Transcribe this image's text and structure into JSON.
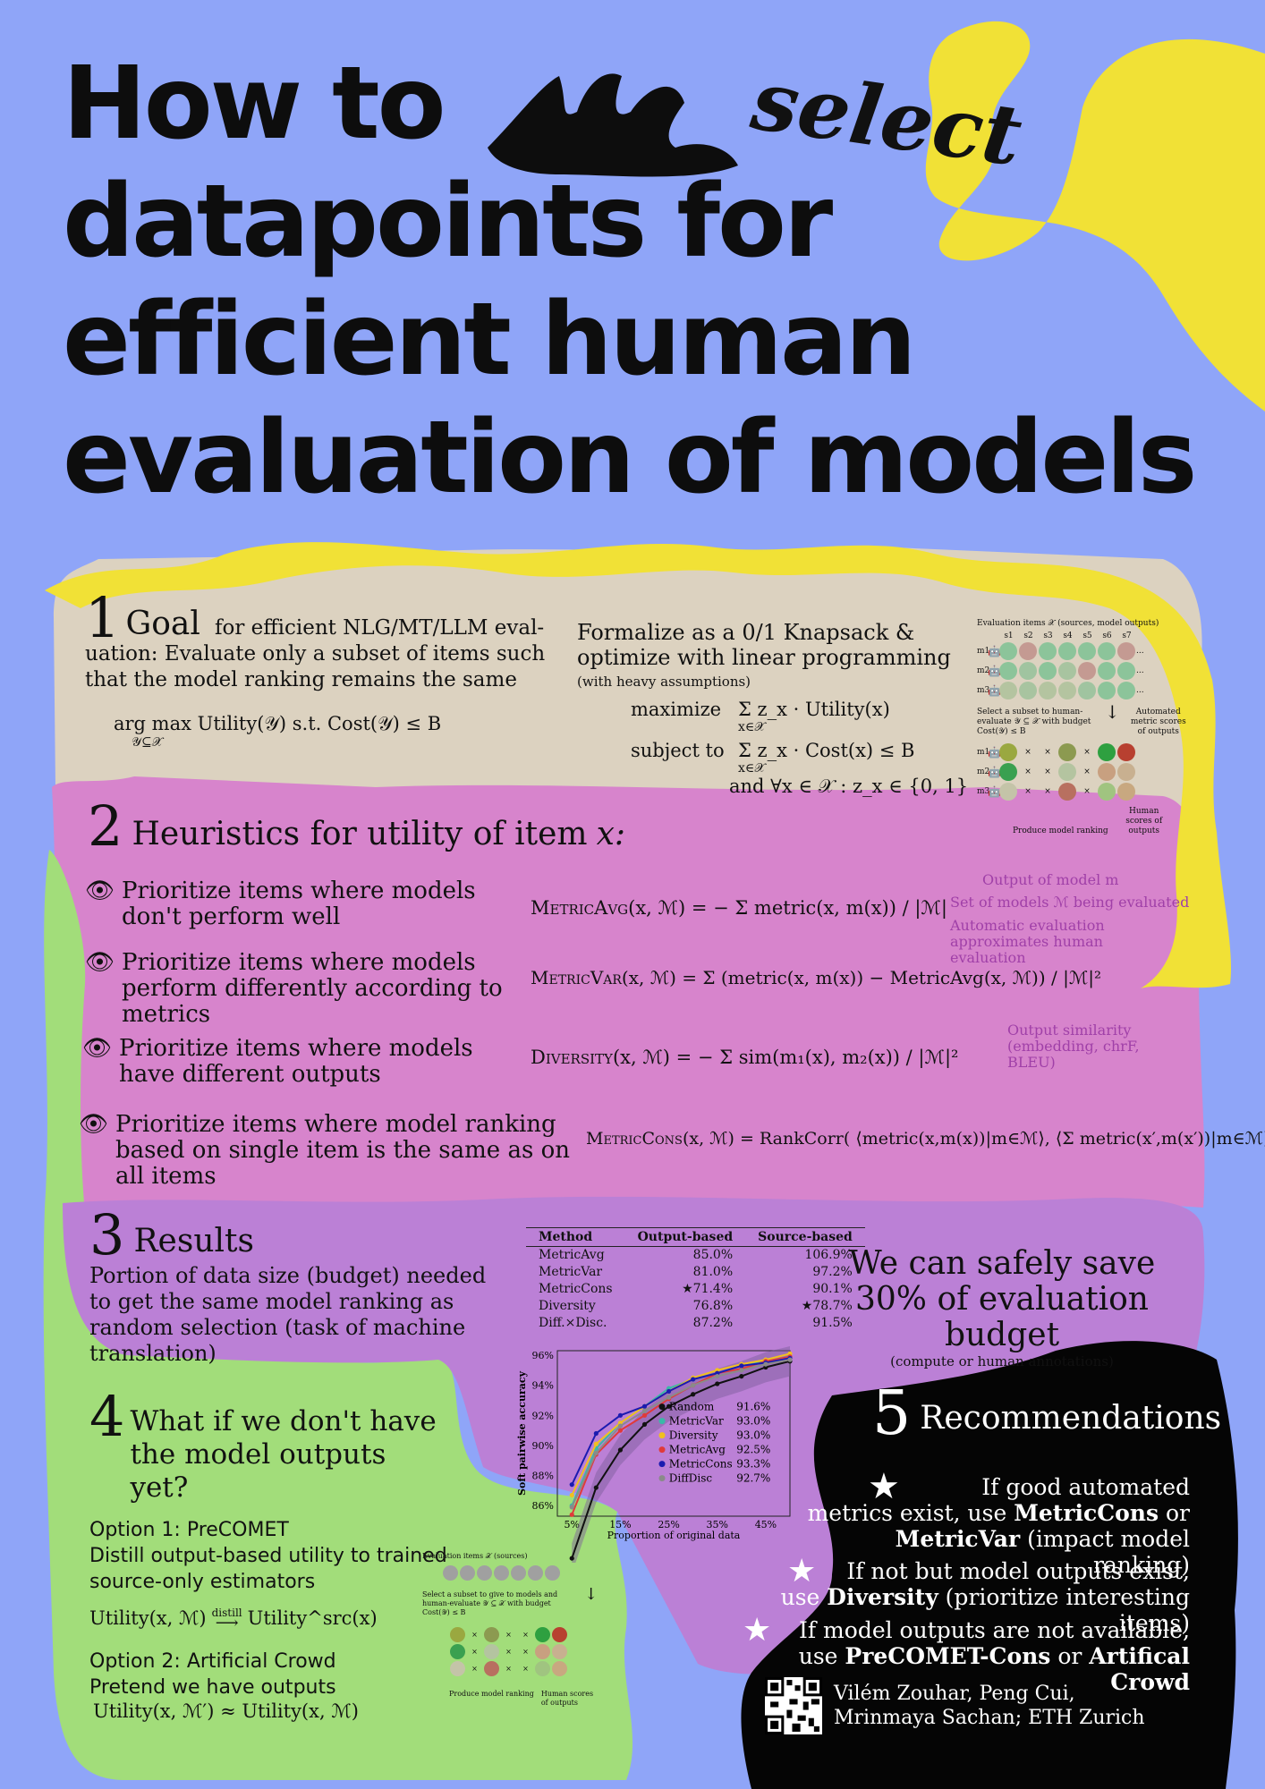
{
  "title": {
    "line1": "How to",
    "select_word": "select",
    "line2": "datapoints for",
    "line3": "efficient human",
    "line4": "evaluation of models"
  },
  "colors": {
    "background": "#8fa5f8",
    "goal_panel": "#dcd2c0",
    "heuristics_panel": "#d784cc",
    "results_panel": "#bb80d6",
    "what_if_panel": "#a2dd7a",
    "yellow_accent": "#f1e136",
    "recommendations_panel": "#050505"
  },
  "goal": {
    "number": "1",
    "heading": "Goal",
    "description": "for efficient NLG/MT/LLM eval- uation: Evaluate only a subset of items such that the model ranking remains the same",
    "formula": "arg max Utility(𝒴)  s.t.  Cost(𝒴) ≤ B",
    "formula_sub": "𝒴⊆𝒳",
    "knapsack_title": "Formalize as a 0/1 Knapsack & optimize with linear programming",
    "knapsack_note": "(with heavy assumptions)",
    "maximize_label": "maximize",
    "maximize_expr": "Σ z_x · Utility(x)",
    "subject_label": "subject to",
    "subject_expr": "Σ z_x · Cost(x) ≤ B",
    "sum_sub": "x∈𝒳",
    "and_expr": "and ∀x ∈ 𝒳 : z_x ∈ {0, 1}",
    "diagram": {
      "items_label": "Evaluation items 𝒳 (sources, model outputs)",
      "sources": [
        "s1",
        "s2",
        "s3",
        "s4",
        "s5",
        "s6",
        "s7"
      ],
      "models": [
        "m1",
        "m2",
        "m3"
      ],
      "select_label": "Select a subset to human-evaluate 𝒴 ⊆ 𝒳 with budget Cost(𝒴) ≤ B",
      "auto_label": "Automated metric scores of outputs",
      "human_label": "Human scores of outputs",
      "rank_label": "Produce model ranking",
      "ellipsis": "..."
    }
  },
  "heuristics": {
    "number": "2",
    "heading_prefix": "Heuristics for utility of item",
    "heading_var": "x:",
    "items": [
      {
        "text": "Prioritize items where models don't perform well",
        "formula_name": "MetricAvg",
        "formula": "(x, ℳ) = − Σ metric(x, m(x)) / |ℳ|"
      },
      {
        "text": "Prioritize items where models perform differently according to metrics",
        "formula_name": "MetricVar",
        "formula": "(x, ℳ) = Σ (metric(x, m(x)) − MetricAvg(x, ℳ)) / |ℳ|²"
      },
      {
        "text": "Prioritize items where models have different outputs",
        "formula_name": "Diversity",
        "formula": "(x, ℳ) = − Σ sim(m₁(x), m₂(x)) / |ℳ|²"
      },
      {
        "text": "Prioritize items where model ranking based on single item is the same as on all items",
        "formula_name": "MetricCons",
        "formula": "(x, ℳ) =   RankCorr( ⟨metric(x,m(x))|m∈ℳ⟩, ⟨Σ metric(x′,m(x′))|m∈ℳ⟩ )"
      }
    ],
    "annotations": {
      "output_of_model": "Output of model m",
      "set_of_models": "Set of models ℳ being evaluated",
      "automatic_eval": "Automatic evaluation approximates human evaluation",
      "output_similarity": "Output similarity (embedding, chrF, BLEU)"
    }
  },
  "results": {
    "number": "3",
    "heading": "Results",
    "description": "Portion of data size (budget) needed to get the same model ranking as random selection (task of machine translation)",
    "table": {
      "headers": [
        "Method",
        "Output-based",
        "Source-based"
      ],
      "rows": [
        [
          "MetricAvg",
          "85.0%",
          "106.9%"
        ],
        [
          "MetricVar",
          "81.0%",
          "97.2%"
        ],
        [
          "MetricCons",
          "★71.4%",
          "90.1%"
        ],
        [
          "Diversity",
          "76.8%",
          "★78.7%"
        ],
        [
          "Diff.×Disc.",
          "87.2%",
          "91.5%"
        ]
      ]
    },
    "claim": "We can safely save 30% of evaluation budget",
    "claim_note": "(compute or human annotations)"
  },
  "chart_data": {
    "type": "line",
    "title": "",
    "xlabel": "Proportion of original data",
    "ylabel": "Soft pairwise accuracy",
    "x_ticks": [
      "5%",
      "15%",
      "25%",
      "35%",
      "45%"
    ],
    "y_ticks": [
      "86%",
      "88%",
      "90%",
      "92%",
      "94%",
      "96%"
    ],
    "xlim": [
      0.02,
      0.5
    ],
    "ylim": [
      85.3,
      96.3
    ],
    "x": [
      0.05,
      0.1,
      0.15,
      0.2,
      0.25,
      0.3,
      0.35,
      0.4,
      0.45,
      0.5
    ],
    "series": [
      {
        "name": "Random",
        "score": "91.6%",
        "color": "#111111",
        "values": [
          82.5,
          87.2,
          89.7,
          91.4,
          92.6,
          93.4,
          94.1,
          94.6,
          95.2,
          95.6
        ]
      },
      {
        "name": "MetricVar",
        "score": "93.0%",
        "color": "#3bb8a8",
        "values": [
          86.0,
          89.8,
          91.5,
          92.6,
          93.8,
          94.4,
          94.8,
          95.3,
          95.6,
          95.9
        ]
      },
      {
        "name": "Diversity",
        "score": "93.0%",
        "color": "#f0c020",
        "values": [
          86.7,
          90.1,
          91.5,
          92.6,
          93.6,
          94.5,
          95.0,
          95.4,
          95.7,
          96.1
        ]
      },
      {
        "name": "MetricAvg",
        "score": "92.5%",
        "color": "#e03a3a",
        "values": [
          85.4,
          89.4,
          91.0,
          92.0,
          93.1,
          94.0,
          94.8,
          95.1,
          95.6,
          95.9
        ]
      },
      {
        "name": "MetricCons",
        "score": "93.3%",
        "color": "#1b1bb0",
        "values": [
          87.4,
          90.8,
          92.0,
          92.6,
          93.6,
          94.4,
          94.8,
          95.3,
          95.5,
          95.8
        ]
      },
      {
        "name": "DiffDisc",
        "score": "92.7%",
        "color": "#8a8a8a",
        "values": [
          85.9,
          89.5,
          91.3,
          92.3,
          93.2,
          94.0,
          94.6,
          95.0,
          95.4,
          95.7
        ]
      }
    ]
  },
  "what_if": {
    "number": "4",
    "heading": "What if we don't have the model outputs yet?",
    "option1_title": "Option 1: PreCOMET",
    "option1_text": "Distill output-based utility to trained source-only estimators",
    "option1_formula_left": "Utility(x, ℳ)",
    "option1_arrow": "distill",
    "option1_formula_right": "Utility^src(x)",
    "option2_title": "Option 2: Artificial Crowd",
    "option2_text": "Pretend we have outputs",
    "option2_formula": "Utility(x, ℳ′) ≈ Utility(x, ℳ)",
    "diagram": {
      "items_label": "Evaluation items 𝒳 (sources)",
      "select_label": "Select a subset to give to models and human-evaluate 𝒴 ⊆ 𝒳 with budget Cost(𝒴) ≤ B",
      "human_label": "Human scores of outputs",
      "rank_label": "Produce model ranking"
    }
  },
  "recommendations": {
    "number": "5",
    "heading": "Recommendations",
    "items": [
      {
        "pre": "If good automated metrics exist, use ",
        "b1": "MetricCons",
        "mid": " or ",
        "b2": "MetricVar",
        "post": " (impact model ranking)"
      },
      {
        "pre": "If not but model outputs exist, use ",
        "b1": "Diversity",
        "mid": "",
        "b2": "",
        "post": " (prioritize interesting items)"
      },
      {
        "pre": "If model outputs are not available, use ",
        "b1": "PreCOMET-Cons",
        "mid": " or ",
        "b2": "Artifical Crowd",
        "post": ""
      }
    ],
    "authors_line1": "Vilém Zouhar, Peng Cui,",
    "authors_line2": "Mrinmaya Sachan; ETH Zurich"
  }
}
